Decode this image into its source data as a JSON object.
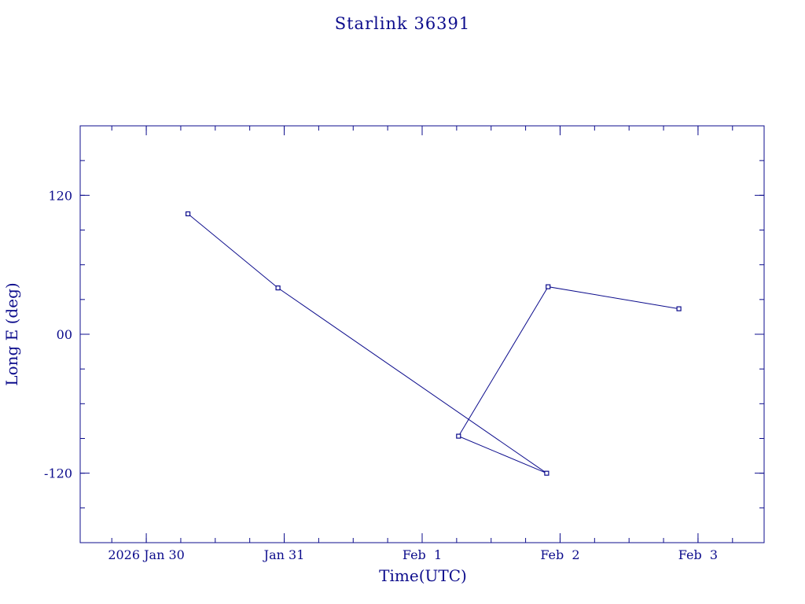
{
  "colors": {
    "ink": "#0c0c8c",
    "background": "#ffffff"
  },
  "chart_data": {
    "type": "line",
    "title": "Starlink 36391",
    "xlabel": "Time(UTC)",
    "ylabel": "Long E (deg)",
    "x_type": "datetime",
    "xlim": [
      "2026-01-29 12:30",
      "2026-02-03 11:30"
    ],
    "ylim": [
      -180,
      180
    ],
    "x_ticks": [
      {
        "value": "2026-01-30 00:00",
        "label": "2026 Jan 30"
      },
      {
        "value": "2026-01-31 00:00",
        "label": "Jan 31"
      },
      {
        "value": "2026-02-01 00:00",
        "label": "Feb  1"
      },
      {
        "value": "2026-02-02 00:00",
        "label": "Feb  2"
      },
      {
        "value": "2026-02-03 00:00",
        "label": "Feb  3"
      }
    ],
    "y_ticks": [
      {
        "value": 120,
        "label": "120"
      },
      {
        "value": 0,
        "label": "00"
      },
      {
        "value": -120,
        "label": "-120"
      }
    ],
    "y_minor_step": 30,
    "x_minor_step_hours": 6,
    "grid": false,
    "legend": "none",
    "markers": "square",
    "series": [
      {
        "x": [
          "2026-01-30 07:15",
          "2026-01-30 22:55",
          "2026-02-01 21:40",
          "2026-02-01 06:20",
          "2026-02-01 21:55",
          "2026-02-02 20:40"
        ],
        "y": [
          104,
          40,
          -120,
          -88,
          41,
          22
        ]
      }
    ]
  }
}
